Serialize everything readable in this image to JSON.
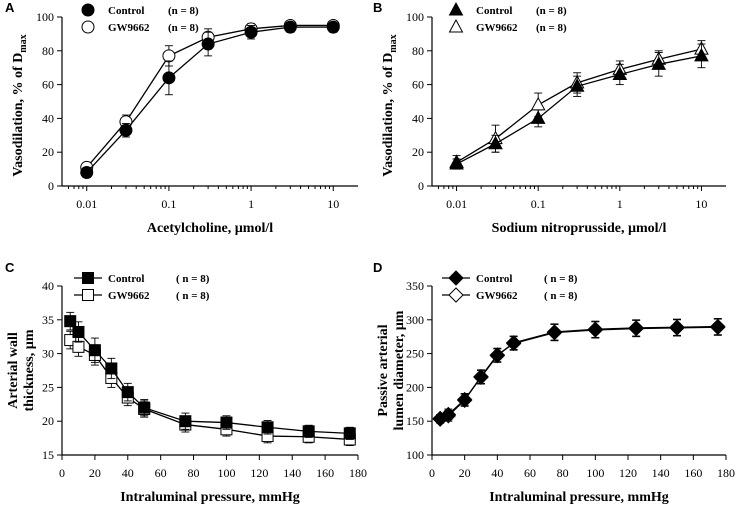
{
  "chart_data": [
    {
      "panel": "A",
      "type": "line",
      "xscale": "log",
      "xlabel": "Acetylcholine, µmol/l",
      "ylabel": "Vasodilation, % of D",
      "ylabel_sub": "max",
      "xlim": [
        0.005,
        20
      ],
      "ylim": [
        0,
        100
      ],
      "xticks": [
        0.01,
        0.1,
        1,
        10
      ],
      "xticklabels": [
        "0.01",
        "0.1",
        "1",
        "10"
      ],
      "yticks": [
        0,
        20,
        40,
        60,
        80,
        100
      ],
      "yticklabels": [
        "0",
        "20",
        "40",
        "60",
        "80",
        "100"
      ],
      "legend_position": "top-left",
      "series": [
        {
          "name": "Control",
          "n_label": "(n = 8)",
          "marker": "circle",
          "filled": true,
          "x": [
            0.01,
            0.03,
            0.1,
            0.3,
            1,
            3,
            10
          ],
          "y": [
            8,
            33,
            64,
            84,
            91,
            94,
            94
          ],
          "err": [
            3,
            4,
            10,
            7,
            4,
            3,
            3
          ]
        },
        {
          "name": "GW9662",
          "n_label": "(n = 8)",
          "marker": "circle",
          "filled": false,
          "x": [
            0.01,
            0.03,
            0.1,
            0.3,
            1,
            3,
            10
          ],
          "y": [
            11,
            38,
            77,
            88,
            93,
            95,
            95
          ],
          "err": [
            3,
            4,
            6,
            5,
            3,
            2,
            2
          ]
        }
      ]
    },
    {
      "panel": "B",
      "type": "line",
      "xscale": "log",
      "xlabel": "Sodium nitroprusside, µmol/l",
      "ylabel": "Vasodilation, % of D",
      "ylabel_sub": "max",
      "xlim": [
        0.005,
        20
      ],
      "ylim": [
        0,
        100
      ],
      "xticks": [
        0.01,
        0.1,
        1,
        10
      ],
      "xticklabels": [
        "0.01",
        "0.1",
        "1",
        "10"
      ],
      "yticks": [
        0,
        20,
        40,
        60,
        80,
        100
      ],
      "yticklabels": [
        "0",
        "20",
        "40",
        "60",
        "80",
        "100"
      ],
      "legend_position": "top-left",
      "series": [
        {
          "name": "Control",
          "n_label": "(n = 8)",
          "marker": "triangle",
          "filled": true,
          "x": [
            0.01,
            0.03,
            0.1,
            0.3,
            1,
            3,
            10
          ],
          "y": [
            13,
            25,
            40,
            59,
            66,
            72,
            77
          ],
          "err": [
            3,
            5,
            5,
            6,
            6,
            7,
            7
          ]
        },
        {
          "name": "GW9662",
          "n_label": "(n = 8)",
          "marker": "triangle",
          "filled": false,
          "x": [
            0.01,
            0.03,
            0.1,
            0.3,
            1,
            3,
            10
          ],
          "y": [
            14,
            28,
            48,
            61,
            69,
            75,
            81
          ],
          "err": [
            4,
            8,
            7,
            6,
            5,
            5,
            5
          ]
        }
      ]
    },
    {
      "panel": "C",
      "type": "line",
      "xscale": "linear",
      "xlabel": "Intraluminal pressure, mmHg",
      "ylabel": "Arterial wall",
      "ylabel2": "thickness, µm",
      "xlim": [
        0,
        180
      ],
      "ylim": [
        15,
        40
      ],
      "xticks": [
        0,
        20,
        40,
        60,
        80,
        100,
        120,
        140,
        160,
        180
      ],
      "xticklabels": [
        "0",
        "20",
        "40",
        "60",
        "80",
        "100",
        "120",
        "140",
        "160",
        "180"
      ],
      "yticks": [
        15,
        20,
        25,
        30,
        35,
        40
      ],
      "yticklabels": [
        "15",
        "20",
        "25",
        "30",
        "35",
        "40"
      ],
      "legend_position": "top-left",
      "series": [
        {
          "name": "Control",
          "n_label": "( n = 8)",
          "marker": "square",
          "filled": true,
          "x": [
            5,
            10,
            20,
            30,
            40,
            50,
            75,
            100,
            125,
            150,
            175
          ],
          "y": [
            34.8,
            33.2,
            30.5,
            27.8,
            24.3,
            22.0,
            20.0,
            19.8,
            19.1,
            18.5,
            18.2
          ],
          "err": [
            1.3,
            1.5,
            1.8,
            1.5,
            1.3,
            1.2,
            1.2,
            1.0,
            1.0,
            0.9,
            0.9
          ]
        },
        {
          "name": "GW9662",
          "n_label": "( n = 8)",
          "marker": "square",
          "filled": false,
          "x": [
            5,
            10,
            20,
            30,
            40,
            50,
            75,
            100,
            125,
            150,
            175
          ],
          "y": [
            32.0,
            31.0,
            29.8,
            26.4,
            23.5,
            21.8,
            19.5,
            18.8,
            17.8,
            17.7,
            17.3
          ],
          "err": [
            1.3,
            1.4,
            1.5,
            1.4,
            1.2,
            1.2,
            1.1,
            1.0,
            1.0,
            0.9,
            0.9
          ]
        }
      ]
    },
    {
      "panel": "D",
      "type": "line",
      "xscale": "linear",
      "xlabel": "Intraluminal pressure, mmHg",
      "ylabel": "Passive arterial",
      "ylabel2": "lumen diameter, µm",
      "xlim": [
        0,
        180
      ],
      "ylim": [
        100,
        350
      ],
      "xticks": [
        0,
        20,
        40,
        60,
        80,
        100,
        120,
        140,
        160,
        180
      ],
      "xticklabels": [
        "0",
        "20",
        "40",
        "60",
        "80",
        "100",
        "120",
        "140",
        "160",
        "180"
      ],
      "yticks": [
        100,
        150,
        200,
        250,
        300,
        350
      ],
      "yticklabels": [
        "100",
        "150",
        "200",
        "250",
        "300",
        "350"
      ],
      "legend_position": "top-left",
      "series": [
        {
          "name": "Control",
          "n_label": "( n = 8)",
          "marker": "diamond",
          "filled": true,
          "x": [
            5,
            10,
            20,
            30,
            40,
            50,
            75,
            100,
            125,
            150,
            175
          ],
          "y": [
            153,
            160,
            182,
            215,
            247,
            266,
            282,
            286,
            288,
            289,
            290
          ],
          "err": [
            6,
            8,
            9,
            10,
            10,
            10,
            12,
            12,
            12,
            12,
            12
          ]
        },
        {
          "name": "GW9662",
          "n_label": "( n = 8)",
          "marker": "diamond",
          "filled": false,
          "x": [
            5,
            10,
            20,
            30,
            40,
            50,
            75,
            100,
            125,
            150,
            175
          ],
          "y": [
            154,
            158,
            181,
            216,
            248,
            265,
            281,
            285,
            287,
            288,
            289
          ],
          "err": [
            6,
            8,
            9,
            10,
            10,
            10,
            12,
            12,
            12,
            12,
            12
          ]
        }
      ]
    }
  ]
}
